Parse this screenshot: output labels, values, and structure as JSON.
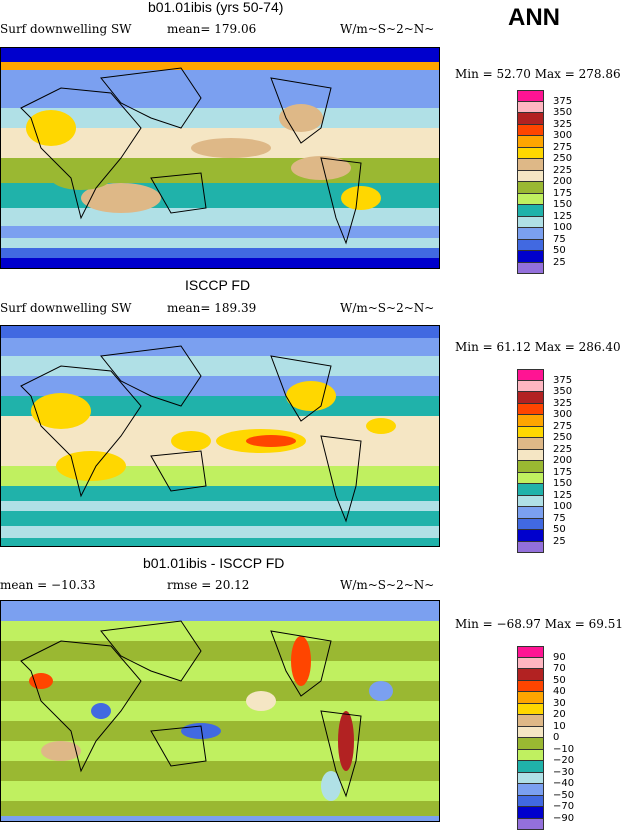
{
  "header": {
    "ann": "ANN"
  },
  "panels": [
    {
      "title": "b01.01ibis (yrs 50-74)",
      "variable": "Surf downwelling SW",
      "stat1": "mean= 179.06",
      "units": "W/m~S~2~N~",
      "minmax": "Min =  52.70 Max = 278.86"
    },
    {
      "title": "ISCCP FD",
      "variable": "Surf downwelling SW",
      "stat1": "mean= 189.39",
      "units": "W/m~S~2~N~",
      "minmax": "Min =  61.12 Max = 286.40"
    },
    {
      "title": "b01.01ibis - ISCCP FD",
      "variable": "mean = −10.33",
      "stat1": "rmse =  20.12",
      "units": "W/m~S~2~N~",
      "minmax": "Min = −68.97 Max =  69.51"
    }
  ],
  "legend_colors": [
    "#ff1493",
    "#ffb6c1",
    "#b22222",
    "#ff4500",
    "#ffa500",
    "#ffd700",
    "#deb887",
    "#f5e6c4",
    "#9ab832",
    "#c0f060",
    "#20b2aa",
    "#b0e0e6",
    "#7ba0f0",
    "#4169e1",
    "#0000cd",
    "#9370db"
  ],
  "legend_abs": [
    "375",
    "350",
    "325",
    "300",
    "275",
    "250",
    "225",
    "200",
    "175",
    "150",
    "125",
    "100",
    "75",
    "50",
    "25"
  ],
  "legend_diff": [
    "90",
    "70",
    "50",
    "40",
    "30",
    "20",
    "10",
    "0",
    "−10",
    "−20",
    "−30",
    "−40",
    "−50",
    "−70",
    "−90"
  ],
  "chart_data": [
    {
      "type": "heatmap",
      "title": "b01.01ibis (yrs 50-74)",
      "variable": "Surf downwelling SW",
      "units": "W/m^2",
      "mean": 179.06,
      "min": 52.7,
      "max": 278.86,
      "levels": [
        25,
        50,
        75,
        100,
        125,
        150,
        175,
        200,
        225,
        250,
        275,
        300,
        325,
        350,
        375
      ]
    },
    {
      "type": "heatmap",
      "title": "ISCCP FD",
      "variable": "Surf downwelling SW",
      "units": "W/m^2",
      "mean": 189.39,
      "min": 61.12,
      "max": 286.4,
      "levels": [
        25,
        50,
        75,
        100,
        125,
        150,
        175,
        200,
        225,
        250,
        275,
        300,
        325,
        350,
        375
      ]
    },
    {
      "type": "heatmap",
      "title": "b01.01ibis - ISCCP FD",
      "units": "W/m^2",
      "mean": -10.33,
      "rmse": 20.12,
      "min": -68.97,
      "max": 69.51,
      "levels": [
        -90,
        -70,
        -50,
        -40,
        -30,
        -20,
        -10,
        0,
        10,
        20,
        30,
        40,
        50,
        70,
        90
      ]
    }
  ]
}
